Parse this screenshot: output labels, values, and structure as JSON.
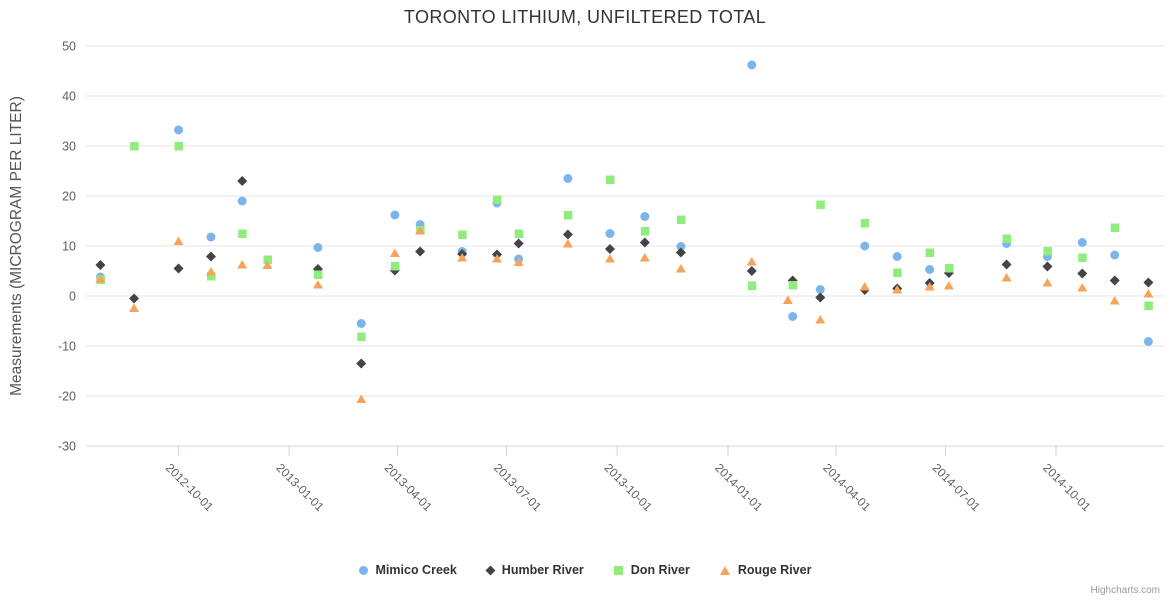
{
  "credit": "Highcharts.com",
  "colors": {
    "grid": "#e6e6e6",
    "axis_line": "#ccd6eb",
    "axis_label": "#606060",
    "title": "#333333",
    "yaxis_title": "#555555",
    "legend_text": "#333333",
    "credit_text": "#999999"
  },
  "chart_data": {
    "type": "scatter",
    "title": "TORONTO LITHIUM, UNFILTERED TOTAL",
    "xlabel": "",
    "ylabel": "Measurements (MICROGRAM PER LITER)",
    "xlim": [
      "2012-07-16",
      "2014-12-30"
    ],
    "ylim": [
      -30,
      50
    ],
    "grid": true,
    "legend_position": "bottom",
    "y_ticks": [
      50,
      40,
      30,
      20,
      10,
      0,
      -10,
      -20,
      -30
    ],
    "x_ticks": [
      "2012-10-01",
      "2013-01-01",
      "2013-04-01",
      "2013-07-01",
      "2013-10-01",
      "2014-01-01",
      "2014-04-01",
      "2014-07-01",
      "2014-10-01"
    ],
    "series": [
      {
        "name": "Mimico Creek",
        "color": "#7cb5ec",
        "marker": "circle",
        "points": [
          [
            "2012-07-28",
            3.8
          ],
          [
            "2012-10-01",
            33.2
          ],
          [
            "2012-10-28",
            11.8
          ],
          [
            "2012-11-23",
            19.0
          ],
          [
            "2013-01-25",
            9.7
          ],
          [
            "2013-03-02",
            -5.5
          ],
          [
            "2013-03-30",
            16.2
          ],
          [
            "2013-04-20",
            14.3
          ],
          [
            "2013-05-25",
            8.9
          ],
          [
            "2013-06-23",
            18.6
          ],
          [
            "2013-07-11",
            7.4
          ],
          [
            "2013-08-21",
            23.5
          ],
          [
            "2013-09-25",
            12.5
          ],
          [
            "2013-10-24",
            15.9
          ],
          [
            "2013-11-23",
            9.9
          ],
          [
            "2014-01-21",
            46.2
          ],
          [
            "2014-02-24",
            -4.1
          ],
          [
            "2014-03-19",
            1.3
          ],
          [
            "2014-04-25",
            10.0
          ],
          [
            "2014-05-22",
            7.9
          ],
          [
            "2014-06-18",
            5.3
          ],
          [
            "2014-08-21",
            10.5
          ],
          [
            "2014-09-24",
            7.9
          ],
          [
            "2014-10-23",
            10.7
          ],
          [
            "2014-11-19",
            8.2
          ],
          [
            "2014-12-17",
            -9.1
          ]
        ]
      },
      {
        "name": "Humber River",
        "color": "#434348",
        "marker": "diamond",
        "points": [
          [
            "2012-07-28",
            6.2
          ],
          [
            "2012-08-25",
            -0.5
          ],
          [
            "2012-10-01",
            5.5
          ],
          [
            "2012-10-28",
            7.9
          ],
          [
            "2012-11-23",
            23.0
          ],
          [
            "2013-01-25",
            5.4
          ],
          [
            "2013-03-02",
            -13.5
          ],
          [
            "2013-03-30",
            5.1
          ],
          [
            "2013-04-20",
            8.9
          ],
          [
            "2013-05-25",
            8.4
          ],
          [
            "2013-06-23",
            8.3
          ],
          [
            "2013-07-11",
            10.5
          ],
          [
            "2013-08-21",
            12.3
          ],
          [
            "2013-09-25",
            9.4
          ],
          [
            "2013-10-24",
            10.7
          ],
          [
            "2013-11-23",
            8.7
          ],
          [
            "2014-01-21",
            5.0
          ],
          [
            "2014-02-24",
            3.1
          ],
          [
            "2014-03-19",
            -0.3
          ],
          [
            "2014-04-25",
            1.2
          ],
          [
            "2014-05-22",
            1.5
          ],
          [
            "2014-06-18",
            2.6
          ],
          [
            "2014-07-04",
            4.6
          ],
          [
            "2014-08-21",
            6.3
          ],
          [
            "2014-09-24",
            5.9
          ],
          [
            "2014-10-23",
            4.5
          ],
          [
            "2014-11-19",
            3.1
          ],
          [
            "2014-12-17",
            2.7
          ]
        ]
      },
      {
        "name": "Don River",
        "color": "#90ed7d",
        "marker": "square",
        "points": [
          [
            "2012-07-28",
            3.3
          ],
          [
            "2012-08-25",
            30.0
          ],
          [
            "2012-10-01",
            30.0
          ],
          [
            "2012-10-28",
            4.0
          ],
          [
            "2012-11-23",
            12.5
          ],
          [
            "2012-12-14",
            7.3
          ],
          [
            "2013-01-25",
            4.3
          ],
          [
            "2013-03-02",
            -8.1
          ],
          [
            "2013-03-30",
            6.0
          ],
          [
            "2013-04-20",
            13.2
          ],
          [
            "2013-05-25",
            12.3
          ],
          [
            "2013-06-23",
            19.3
          ],
          [
            "2013-07-11",
            12.5
          ],
          [
            "2013-08-21",
            16.2
          ],
          [
            "2013-09-25",
            23.3
          ],
          [
            "2013-10-24",
            13.0
          ],
          [
            "2013-11-23",
            15.3
          ],
          [
            "2014-01-21",
            2.1
          ],
          [
            "2014-02-24",
            2.2
          ],
          [
            "2014-03-19",
            18.3
          ],
          [
            "2014-04-25",
            14.6
          ],
          [
            "2014-05-22",
            4.7
          ],
          [
            "2014-06-18",
            8.7
          ],
          [
            "2014-07-04",
            5.6
          ],
          [
            "2014-08-21",
            11.5
          ],
          [
            "2014-09-24",
            9.0
          ],
          [
            "2014-10-23",
            7.7
          ],
          [
            "2014-11-19",
            13.7
          ],
          [
            "2014-12-17",
            -1.9
          ]
        ]
      },
      {
        "name": "Rouge River",
        "color": "#f7a35c",
        "marker": "triangle",
        "points": [
          [
            "2012-07-28",
            3.5
          ],
          [
            "2012-08-25",
            -2.4
          ],
          [
            "2012-10-01",
            11.0
          ],
          [
            "2012-10-28",
            4.9
          ],
          [
            "2012-11-23",
            6.3
          ],
          [
            "2012-12-14",
            6.2
          ],
          [
            "2013-01-25",
            2.3
          ],
          [
            "2013-03-02",
            -20.6
          ],
          [
            "2013-03-30",
            8.6
          ],
          [
            "2013-04-20",
            13.1
          ],
          [
            "2013-05-25",
            7.7
          ],
          [
            "2013-06-23",
            7.5
          ],
          [
            "2013-07-11",
            6.8
          ],
          [
            "2013-08-21",
            10.5
          ],
          [
            "2013-09-25",
            7.5
          ],
          [
            "2013-10-24",
            7.7
          ],
          [
            "2013-11-23",
            5.5
          ],
          [
            "2014-01-21",
            6.9
          ],
          [
            "2014-02-20",
            -0.8
          ],
          [
            "2014-03-19",
            -4.7
          ],
          [
            "2014-04-25",
            1.9
          ],
          [
            "2014-05-22",
            1.3
          ],
          [
            "2014-06-18",
            1.9
          ],
          [
            "2014-07-04",
            2.1
          ],
          [
            "2014-08-21",
            3.7
          ],
          [
            "2014-09-24",
            2.7
          ],
          [
            "2014-10-23",
            1.7
          ],
          [
            "2014-11-19",
            -0.9
          ],
          [
            "2014-12-17",
            0.5
          ]
        ]
      }
    ]
  }
}
